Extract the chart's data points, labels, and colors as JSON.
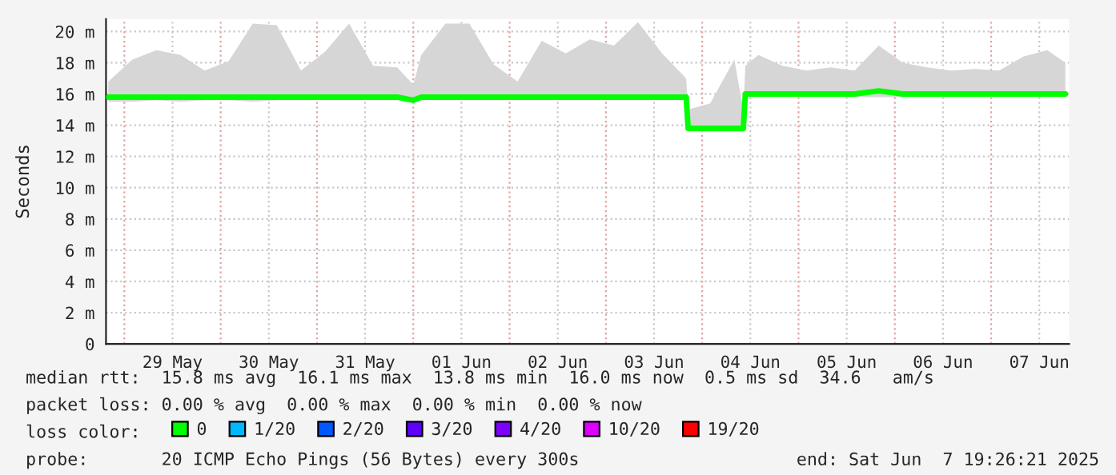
{
  "chart_data": {
    "type": "line",
    "ylabel": "Seconds",
    "x": [
      "2025-05-28T20:00",
      "2025-05-29T02:00",
      "2025-05-29T08:00",
      "2025-05-29T14:00",
      "2025-05-29T20:00",
      "2025-05-30T02:00",
      "2025-05-30T08:00",
      "2025-05-30T14:00",
      "2025-05-30T20:00",
      "2025-05-31T02:00",
      "2025-05-31T08:00",
      "2025-05-31T14:00",
      "2025-05-31T20:00",
      "2025-06-01T00:00",
      "2025-06-01T02:00",
      "2025-06-01T08:00",
      "2025-06-01T14:00",
      "2025-06-01T20:00",
      "2025-06-02T02:00",
      "2025-06-02T08:00",
      "2025-06-02T14:00",
      "2025-06-02T20:00",
      "2025-06-03T02:00",
      "2025-06-03T08:00",
      "2025-06-03T14:00",
      "2025-06-03T20:00",
      "2025-06-03T20:30",
      "2025-06-04T02:00",
      "2025-06-04T08:00",
      "2025-06-04T10:15",
      "2025-06-04T10:45",
      "2025-06-04T14:00",
      "2025-06-04T20:00",
      "2025-06-05T02:00",
      "2025-06-05T08:00",
      "2025-06-05T14:00",
      "2025-06-05T20:00",
      "2025-06-06T02:00",
      "2025-06-06T08:00",
      "2025-06-06T14:00",
      "2025-06-06T20:00",
      "2025-06-07T02:00",
      "2025-06-07T08:00",
      "2025-06-07T14:00",
      "2025-06-07T18:30"
    ],
    "series": [
      {
        "name": "0",
        "color": "#00ff00",
        "values": [
          15.8,
          15.8,
          15.8,
          15.8,
          15.8,
          15.8,
          15.8,
          15.8,
          15.8,
          15.8,
          15.8,
          15.8,
          15.8,
          15.6,
          15.8,
          15.8,
          15.8,
          15.8,
          15.8,
          15.8,
          15.8,
          15.8,
          15.8,
          15.8,
          15.8,
          15.8,
          13.8,
          13.8,
          13.8,
          13.8,
          16.0,
          16.0,
          16.0,
          16.0,
          16.0,
          16.0,
          16.2,
          16.0,
          16.0,
          16.0,
          16.0,
          16.0,
          16.0,
          16.0,
          16.0
        ],
        "lower": [
          15.5,
          15.5,
          15.6,
          15.5,
          15.6,
          15.6,
          15.5,
          15.6,
          15.6,
          15.6,
          15.6,
          15.6,
          15.6,
          15.5,
          15.6,
          15.6,
          15.6,
          15.6,
          15.6,
          15.6,
          15.6,
          15.6,
          15.6,
          15.6,
          15.6,
          15.6,
          13.6,
          13.6,
          13.6,
          13.6,
          15.8,
          15.8,
          15.8,
          15.8,
          15.8,
          15.8,
          15.8,
          15.8,
          15.8,
          15.8,
          15.8,
          15.8,
          15.8,
          15.8,
          15.8
        ],
        "upper": [
          16.8,
          18.2,
          18.8,
          18.5,
          17.5,
          18.1,
          20.5,
          20.4,
          17.5,
          18.7,
          20.5,
          17.8,
          17.7,
          16.6,
          18.5,
          20.5,
          20.5,
          17.9,
          16.8,
          19.4,
          18.6,
          19.5,
          19.1,
          20.6,
          18.6,
          17.0,
          15.0,
          15.4,
          18.2,
          15.0,
          17.8,
          18.5,
          17.8,
          17.5,
          17.7,
          17.5,
          19.1,
          18.0,
          17.7,
          17.5,
          17.6,
          17.5,
          18.4,
          18.8,
          18.0
        ]
      },
      {
        "name": "1/20",
        "color": "#00b8ff",
        "values": [
          null,
          null,
          null,
          null,
          null,
          null,
          null,
          null,
          null,
          null,
          null,
          null,
          null,
          null,
          null,
          null,
          null,
          null,
          null,
          null,
          null,
          null,
          null,
          null,
          null,
          null,
          null,
          null,
          null,
          null,
          null,
          null,
          null,
          null,
          null,
          null,
          null,
          null,
          null,
          null,
          null,
          null,
          null,
          null,
          null
        ]
      },
      {
        "name": "2/20",
        "color": "#0059ff",
        "values": [
          null,
          null,
          null,
          null,
          null,
          null,
          null,
          null,
          null,
          null,
          null,
          null,
          null,
          null,
          null,
          null,
          null,
          null,
          null,
          null,
          null,
          null,
          null,
          null,
          null,
          null,
          null,
          null,
          null,
          null,
          null,
          null,
          null,
          null,
          null,
          null,
          null,
          null,
          null,
          null,
          null,
          null,
          null,
          null,
          null
        ]
      },
      {
        "name": "3/20",
        "color": "#5e00ff",
        "values": [
          null,
          null,
          null,
          null,
          null,
          null,
          null,
          null,
          null,
          null,
          null,
          null,
          null,
          null,
          null,
          null,
          null,
          null,
          null,
          null,
          null,
          null,
          null,
          null,
          null,
          null,
          null,
          null,
          null,
          null,
          null,
          null,
          null,
          null,
          null,
          null,
          null,
          null,
          null,
          null,
          null,
          null,
          null,
          null,
          null
        ]
      },
      {
        "name": "4/20",
        "color": "#7e00ff",
        "values": [
          null,
          null,
          null,
          null,
          null,
          null,
          null,
          null,
          null,
          null,
          null,
          null,
          null,
          null,
          null,
          null,
          null,
          null,
          null,
          null,
          null,
          null,
          null,
          null,
          null,
          null,
          null,
          null,
          null,
          null,
          null,
          null,
          null,
          null,
          null,
          null,
          null,
          null,
          null,
          null,
          null,
          null,
          null,
          null,
          null
        ]
      },
      {
        "name": "10/20",
        "color": "#dd00ff",
        "values": [
          null,
          null,
          null,
          null,
          null,
          null,
          null,
          null,
          null,
          null,
          null,
          null,
          null,
          null,
          null,
          null,
          null,
          null,
          null,
          null,
          null,
          null,
          null,
          null,
          null,
          null,
          null,
          null,
          null,
          null,
          null,
          null,
          null,
          null,
          null,
          null,
          null,
          null,
          null,
          null,
          null,
          null,
          null,
          null,
          null
        ]
      },
      {
        "name": "19/20",
        "color": "#ff0000",
        "values": [
          null,
          null,
          null,
          null,
          null,
          null,
          null,
          null,
          null,
          null,
          null,
          null,
          null,
          null,
          null,
          null,
          null,
          null,
          null,
          null,
          null,
          null,
          null,
          null,
          null,
          null,
          null,
          null,
          null,
          null,
          null,
          null,
          null,
          null,
          null,
          null,
          null,
          null,
          null,
          null,
          null,
          null,
          null,
          null,
          null
        ]
      }
    ],
    "legend": "bottom",
    "legend_title": "loss color:",
    "xlim": [
      "2025-05-28T19:26",
      "2025-06-07T19:26"
    ],
    "xticks": [
      {
        "value": "2025-05-29T12:00",
        "label": "29 May"
      },
      {
        "value": "2025-05-30T12:00",
        "label": "30 May"
      },
      {
        "value": "2025-05-31T12:00",
        "label": "31 May"
      },
      {
        "value": "2025-06-01T12:00",
        "label": "01 Jun"
      },
      {
        "value": "2025-06-02T12:00",
        "label": "02 Jun"
      },
      {
        "value": "2025-06-03T12:00",
        "label": "03 Jun"
      },
      {
        "value": "2025-06-04T12:00",
        "label": "04 Jun"
      },
      {
        "value": "2025-06-05T12:00",
        "label": "05 Jun"
      },
      {
        "value": "2025-06-06T12:00",
        "label": "06 Jun"
      },
      {
        "value": "2025-06-07T12:00",
        "label": "07 Jun"
      },
      {
        "value": "2025-05-29",
        "label": null
      },
      {
        "value": "2025-05-30",
        "label": null
      },
      {
        "value": "2025-05-31",
        "label": null
      },
      {
        "value": "2025-06-01",
        "label": null
      },
      {
        "value": "2025-06-02",
        "label": null
      },
      {
        "value": "2025-06-03",
        "label": null
      },
      {
        "value": "2025-06-04",
        "label": null
      },
      {
        "value": "2025-06-05",
        "label": null
      },
      {
        "value": "2025-06-06",
        "label": null
      },
      {
        "value": "2025-06-07",
        "label": null
      }
    ],
    "ylim": [
      0,
      20.8
    ],
    "yticks": [
      0,
      {
        "value": 2,
        "label": "2 m"
      },
      {
        "value": 4,
        "label": "4 m"
      },
      {
        "value": 6,
        "label": "6 m"
      },
      {
        "value": 8,
        "label": "8 m"
      },
      {
        "value": 10,
        "label": "10 m"
      },
      {
        "value": 12,
        "label": "12 m"
      },
      {
        "value": 14,
        "label": "14 m"
      },
      {
        "value": 16,
        "label": "16 m"
      },
      {
        "value": 18,
        "label": "18 m"
      },
      {
        "value": 20,
        "label": "20 m"
      }
    ],
    "grid": true,
    "annotations": [
      "median rtt:  15.8 ms avg  16.1 ms max  13.8 ms min  16.0 ms now  0.5 ms sd  34.6   am/s",
      "packet loss: 0.00 % avg  0.00 % max  0.00 % min  0.00 % now",
      "probe:       20 ICMP Echo Pings (56 Bytes) every 300s",
      "end: Sat Jun  7 19:26:21 2025"
    ]
  }
}
